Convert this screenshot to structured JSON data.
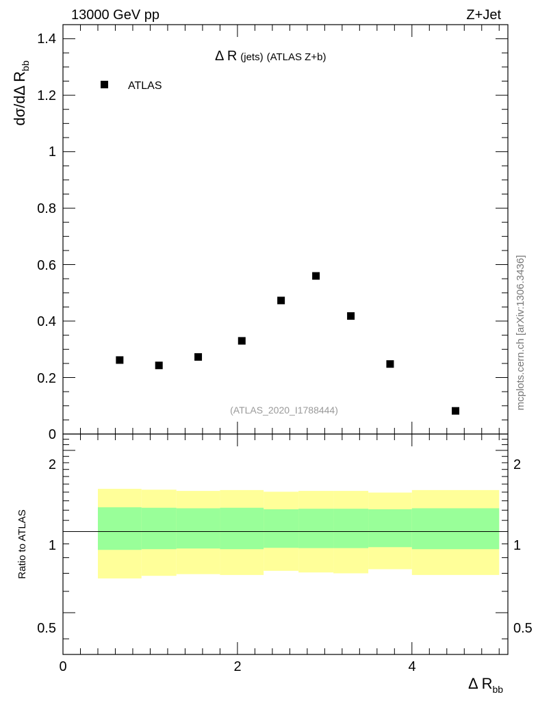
{
  "header": {
    "left_label": "13000 GeV pp",
    "right_label": "Z+Jet"
  },
  "chart_data": {
    "type": "scatter",
    "title": "Δ R (jets) (ATLAS Z+b)",
    "title_main": "Δ R",
    "title_mid": "(jets)",
    "title_end": "(ATLAS Z+b)",
    "ylabel": {
      "main": "dσ/dΔ R",
      "sub": "bb"
    },
    "xlabel": {
      "main": "Δ R",
      "sub": "bb"
    },
    "xlim": [
      0,
      5.1
    ],
    "ylim": [
      0,
      1.45
    ],
    "y_ticks": [
      "0",
      "0.2",
      "0.4",
      "0.6",
      "0.8",
      "1",
      "1.2",
      "1.4"
    ],
    "x_ticks": [
      "0",
      "2",
      "4"
    ],
    "legend": {
      "position": "top-left",
      "label": "ATLAS"
    },
    "series": [
      {
        "name": "ATLAS",
        "color": "#000000",
        "x": [
          0.65,
          1.1,
          1.55,
          2.05,
          2.5,
          2.9,
          3.3,
          3.75,
          4.5
        ],
        "y": [
          0.262,
          0.243,
          0.273,
          0.33,
          0.473,
          0.56,
          0.418,
          0.248,
          0.082
        ]
      }
    ],
    "analysis_label": "(ATLAS_2020_I1788444)",
    "side_label": "mcplots.cern.ch [arXiv:1306.3436]",
    "ratio": {
      "ylabel": "Ratio to ATLAS",
      "ylim": [
        0.35,
        2.3
      ],
      "y_ticks": [
        "0.5",
        "1",
        "2"
      ],
      "y_tick_values": [
        0.5,
        1,
        2
      ],
      "reference": 1,
      "inner_band_color": "#99ff99",
      "outer_band_color": "#ffff99",
      "bins": [
        {
          "lo": 0.4,
          "hi": 0.9,
          "inner": [
            0.855,
            1.23
          ],
          "outer": [
            0.67,
            1.44
          ]
        },
        {
          "lo": 0.9,
          "hi": 1.3,
          "inner": [
            0.86,
            1.225
          ],
          "outer": [
            0.685,
            1.43
          ]
        },
        {
          "lo": 1.3,
          "hi": 1.8,
          "inner": [
            0.865,
            1.22
          ],
          "outer": [
            0.695,
            1.415
          ]
        },
        {
          "lo": 1.8,
          "hi": 2.3,
          "inner": [
            0.86,
            1.225
          ],
          "outer": [
            0.69,
            1.425
          ]
        },
        {
          "lo": 2.3,
          "hi": 2.7,
          "inner": [
            0.87,
            1.21
          ],
          "outer": [
            0.715,
            1.405
          ]
        },
        {
          "lo": 2.7,
          "hi": 3.1,
          "inner": [
            0.868,
            1.215
          ],
          "outer": [
            0.705,
            1.415
          ]
        },
        {
          "lo": 3.1,
          "hi": 3.5,
          "inner": [
            0.868,
            1.215
          ],
          "outer": [
            0.7,
            1.415
          ]
        },
        {
          "lo": 3.5,
          "hi": 4.0,
          "inner": [
            0.875,
            1.21
          ],
          "outer": [
            0.725,
            1.395
          ]
        },
        {
          "lo": 4.0,
          "hi": 5.0,
          "inner": [
            0.86,
            1.22
          ],
          "outer": [
            0.69,
            1.425
          ]
        }
      ]
    }
  }
}
